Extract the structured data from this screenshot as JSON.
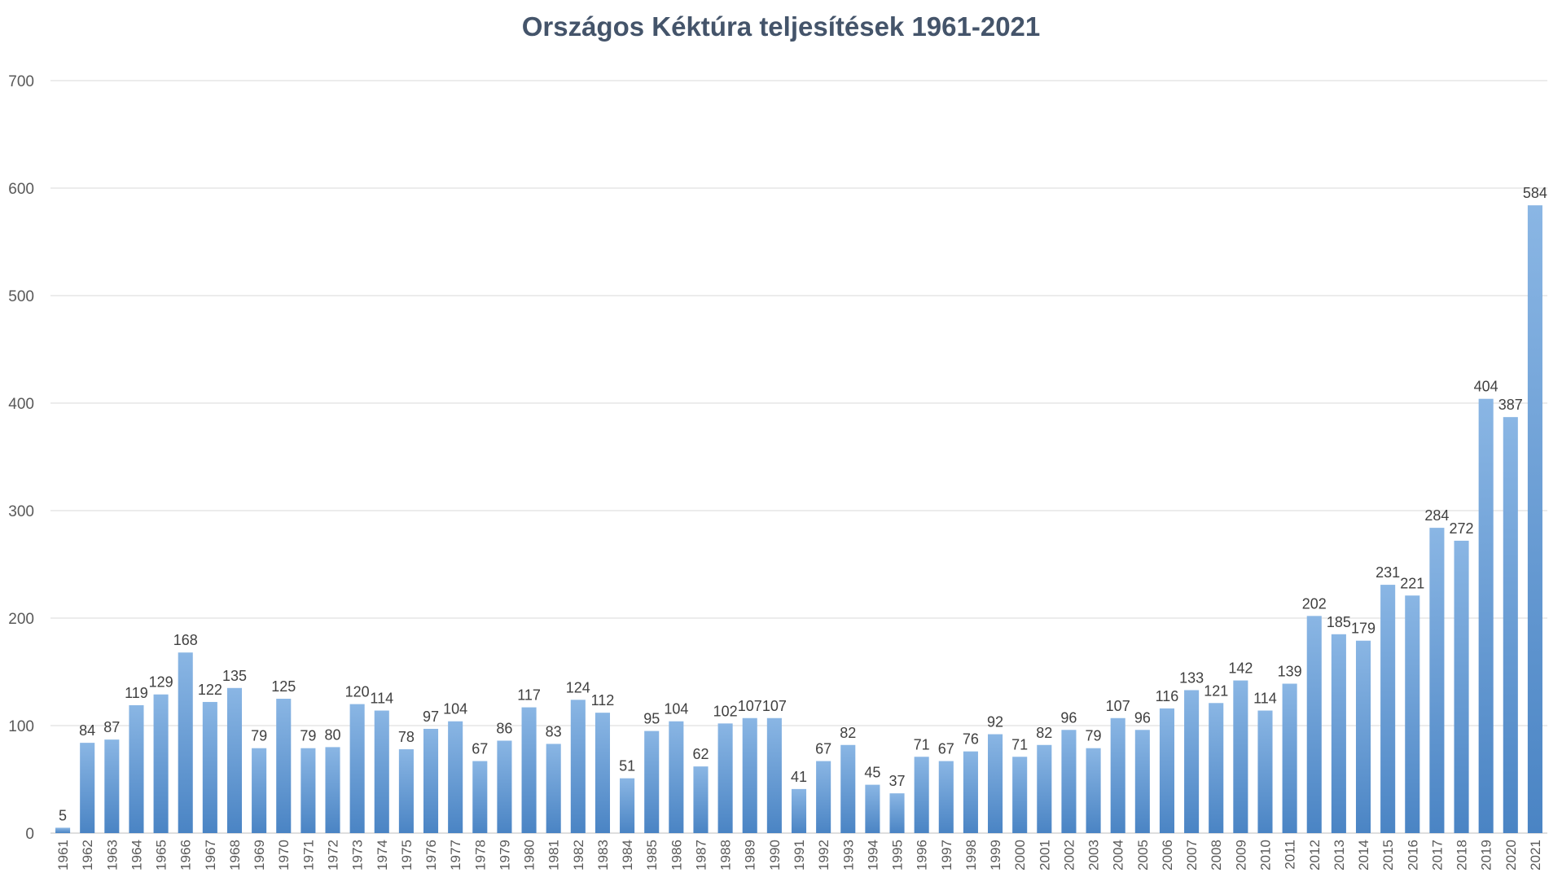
{
  "chart_data": {
    "type": "bar",
    "title": "Országos Kéktúra teljesítések 1961-2021",
    "xlabel": "",
    "ylabel": "",
    "ylim": [
      0,
      700
    ],
    "yticks": [
      "0",
      "100",
      "200",
      "300",
      "400",
      "500",
      "600",
      "700"
    ],
    "grid": true,
    "legend": "none",
    "data_labels": true,
    "colors": {
      "bar_top": "#8ab6e4",
      "bar_bottom": "#4a84c4",
      "grid": "#d9d9d9",
      "title": "#44546a"
    },
    "categories": [
      "1961",
      "1962",
      "1963",
      "1964",
      "1965",
      "1966",
      "1967",
      "1968",
      "1969",
      "1970",
      "1971",
      "1972",
      "1973",
      "1974",
      "1975",
      "1976",
      "1977",
      "1978",
      "1979",
      "1980",
      "1981",
      "1982",
      "1983",
      "1984",
      "1985",
      "1986",
      "1987",
      "1988",
      "1989",
      "1990",
      "1991",
      "1992",
      "1993",
      "1994",
      "1995",
      "1996",
      "1997",
      "1998",
      "1999",
      "2000",
      "2001",
      "2002",
      "2003",
      "2004",
      "2005",
      "2006",
      "2007",
      "2008",
      "2009",
      "2010",
      "2011",
      "2012",
      "2013",
      "2014",
      "2015",
      "2016",
      "2017",
      "2018",
      "2019",
      "2020",
      "2021"
    ],
    "values": [
      5,
      84,
      87,
      119,
      129,
      168,
      122,
      135,
      79,
      125,
      79,
      80,
      120,
      114,
      78,
      97,
      104,
      67,
      86,
      117,
      83,
      124,
      112,
      51,
      95,
      104,
      62,
      102,
      107,
      107,
      41,
      67,
      82,
      45,
      37,
      71,
      67,
      76,
      92,
      71,
      82,
      96,
      79,
      107,
      96,
      116,
      133,
      121,
      142,
      114,
      139,
      202,
      185,
      179,
      231,
      221,
      284,
      272,
      404,
      387,
      584
    ]
  }
}
